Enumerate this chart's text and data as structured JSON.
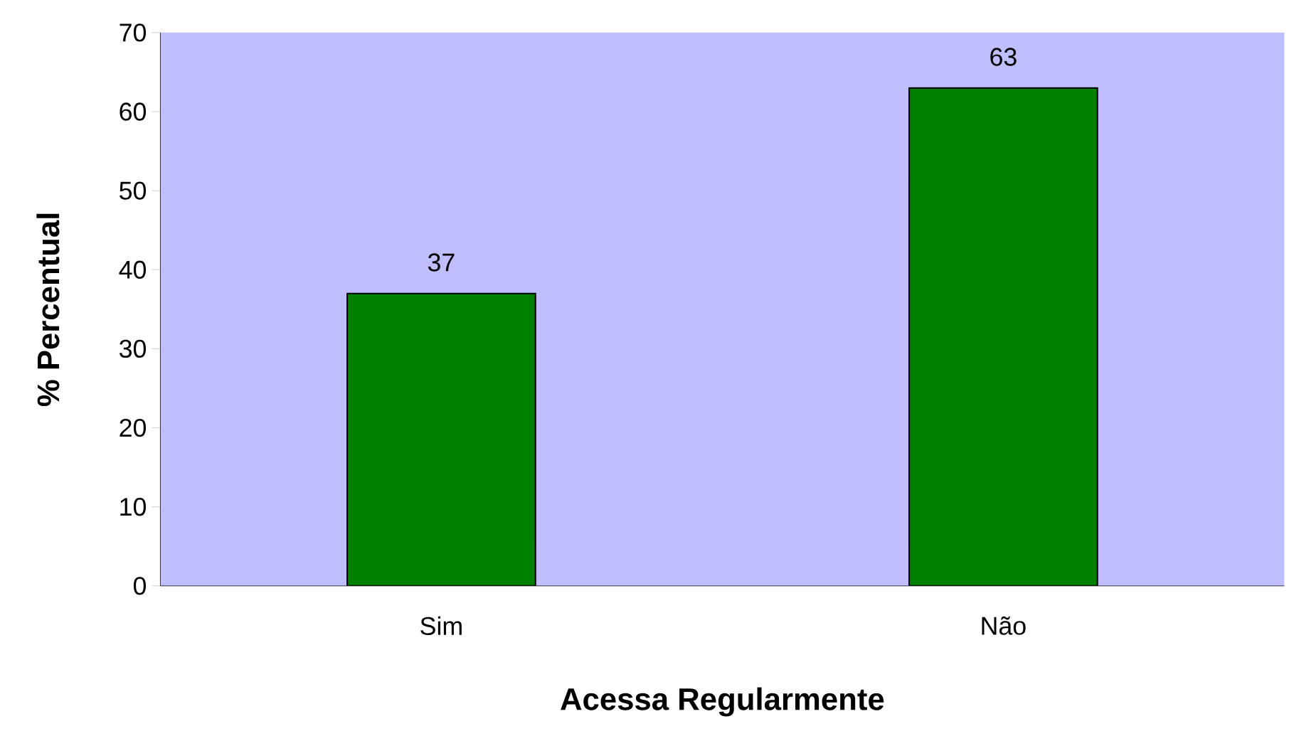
{
  "chart_data": {
    "type": "bar",
    "xlabel": "Acessa Regularmente",
    "ylabel": "% Percentual",
    "categories": [
      "Sim",
      "Não"
    ],
    "values": [
      37,
      63
    ],
    "color": "#008000",
    "ylim": [
      0,
      70
    ],
    "yticks": [
      0,
      10,
      20,
      30,
      40,
      50,
      60,
      70
    ],
    "data_labels": true,
    "grid": false
  }
}
